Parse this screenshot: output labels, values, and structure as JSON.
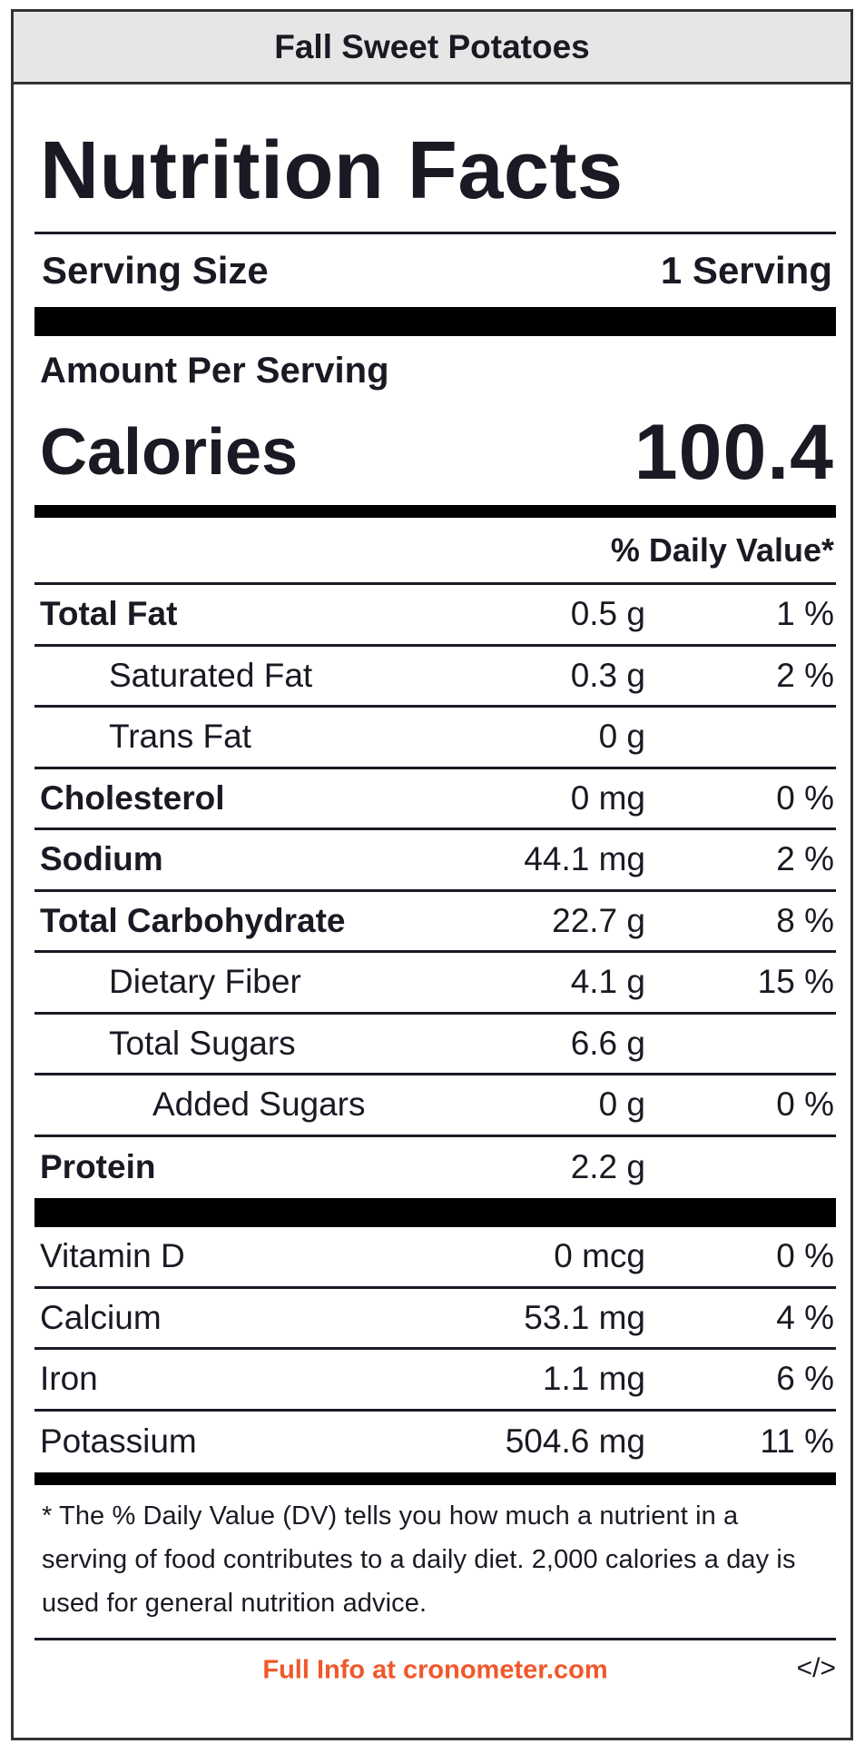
{
  "title": "Fall Sweet Potatoes",
  "heading": "Nutrition Facts",
  "serving": {
    "label": "Serving Size",
    "value": "1 Serving"
  },
  "amount_per_serving": "Amount Per Serving",
  "calories": {
    "label": "Calories",
    "value": "100.4"
  },
  "daily_value_header": "% Daily Value*",
  "nutrients": [
    {
      "name": "Total Fat",
      "amount": "0.5 g",
      "dv": "1 %"
    },
    {
      "name": "Saturated Fat",
      "amount": "0.3 g",
      "dv": "2 %"
    },
    {
      "name": "Trans Fat",
      "amount": "0 g",
      "dv": ""
    },
    {
      "name": "Cholesterol",
      "amount": "0 mg",
      "dv": "0 %"
    },
    {
      "name": "Sodium",
      "amount": "44.1 mg",
      "dv": "2 %"
    },
    {
      "name": "Total Carbohydrate",
      "amount": "22.7 g",
      "dv": "8 %"
    },
    {
      "name": "Dietary Fiber",
      "amount": "4.1 g",
      "dv": "15 %"
    },
    {
      "name": "Total Sugars",
      "amount": "6.6 g",
      "dv": ""
    },
    {
      "name": "Added Sugars",
      "amount": "0 g",
      "dv": "0 %"
    },
    {
      "name": "Protein",
      "amount": "2.2 g",
      "dv": ""
    }
  ],
  "vitamins": [
    {
      "name": "Vitamin D",
      "amount": "0 mcg",
      "dv": "0 %"
    },
    {
      "name": "Calcium",
      "amount": "53.1 mg",
      "dv": "4 %"
    },
    {
      "name": "Iron",
      "amount": "1.1 mg",
      "dv": "6 %"
    },
    {
      "name": "Potassium",
      "amount": "504.6 mg",
      "dv": "11 %"
    }
  ],
  "footnote": "* The % Daily Value (DV) tells you how much a nutrient in a serving of food contributes to a daily diet. 2,000 calories a day is used for general nutrition advice.",
  "footer": {
    "link_text": "Full Info at cronometer.com",
    "embed_label": "</>",
    "link_color": "#f0582a"
  }
}
